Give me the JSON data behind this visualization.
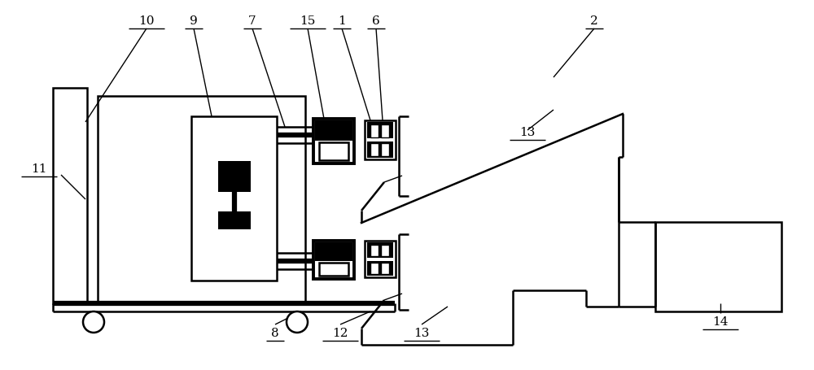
{
  "bg_color": "#ffffff",
  "lw_thin": 1.0,
  "lw_med": 1.8,
  "lw_thick": 2.8,
  "lw_xthick": 4.5,
  "figsize": [
    10.0,
    4.55
  ],
  "dpi": 100
}
